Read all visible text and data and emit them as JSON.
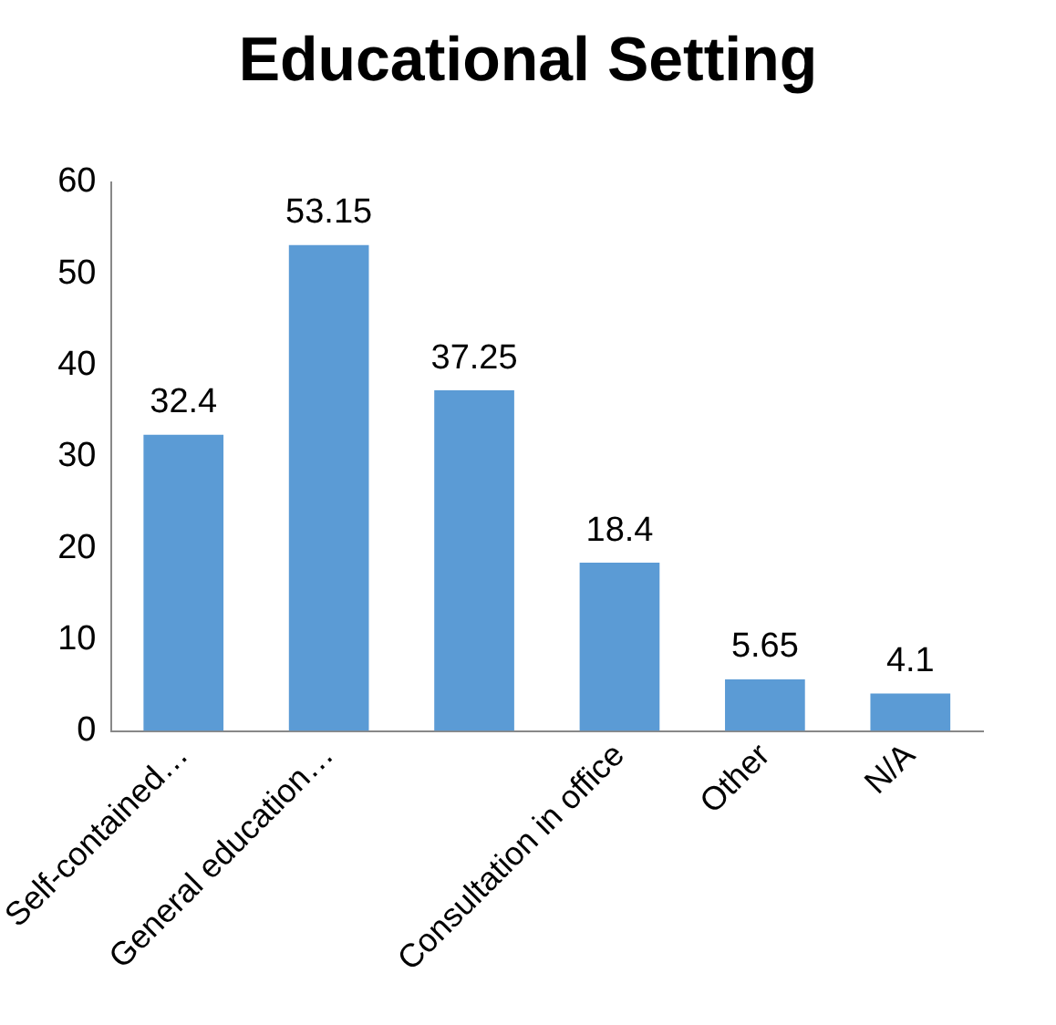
{
  "chart_data": {
    "type": "bar",
    "title": "Educational Setting",
    "categories": [
      "Self-contained…",
      "General education…",
      null,
      "Consultation in office",
      "Other",
      "N/A"
    ],
    "values": [
      32.4,
      53.15,
      37.25,
      18.4,
      5.65,
      4.1
    ],
    "color": "#5b9bd5",
    "ylim": [
      0,
      60
    ],
    "yticks": [
      0,
      10,
      20,
      30,
      40,
      50,
      60
    ],
    "grid": false,
    "legend": false,
    "data_labels": true
  }
}
